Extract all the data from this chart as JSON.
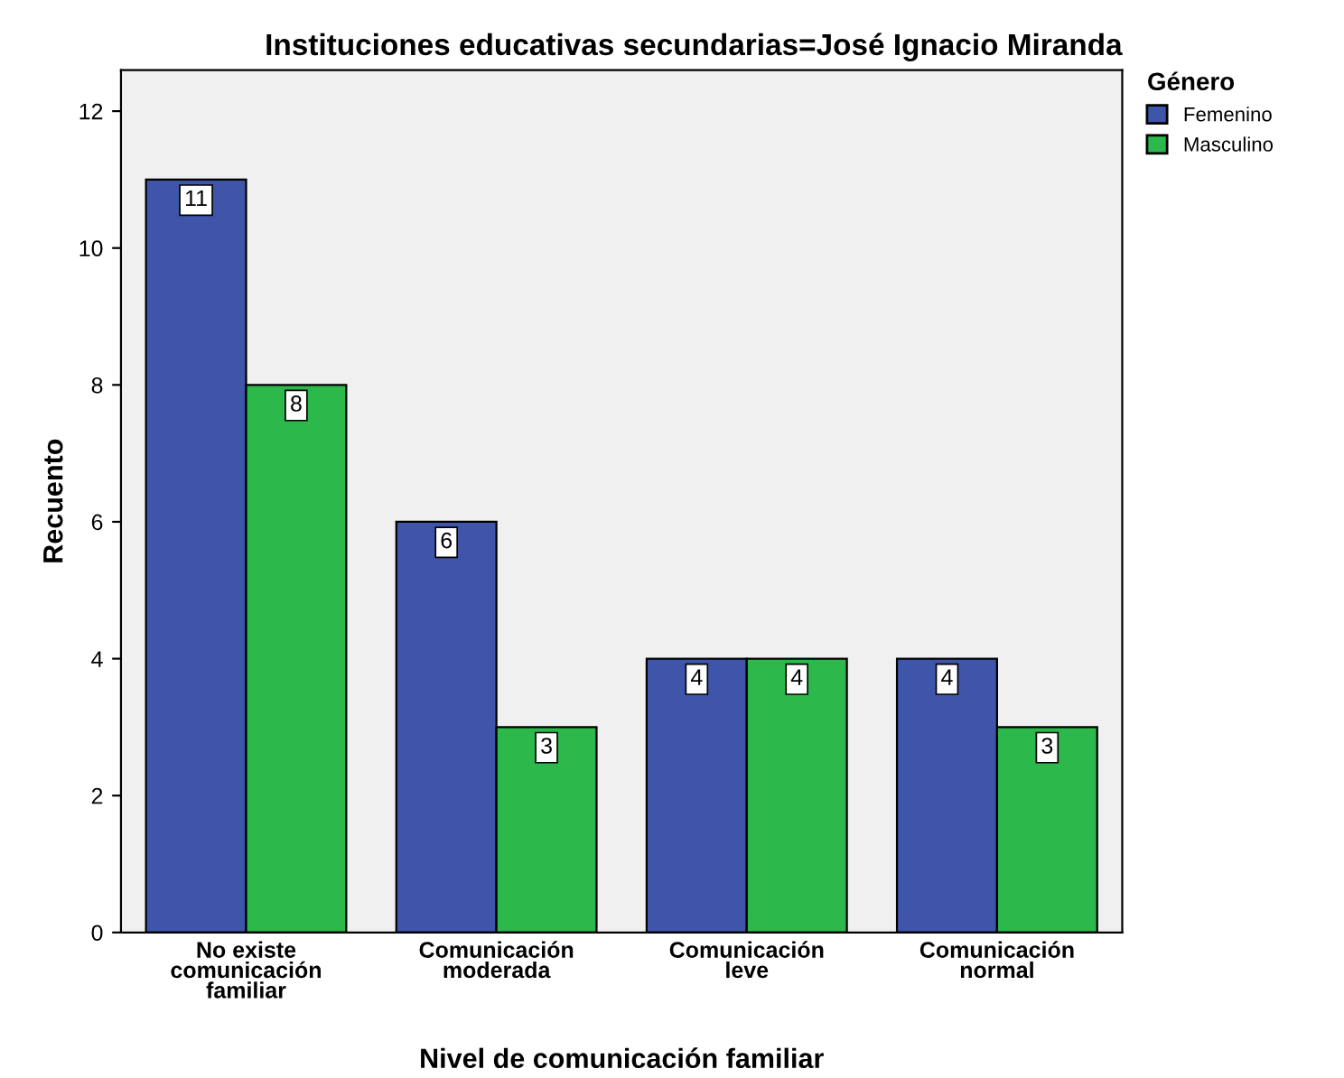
{
  "chart_data": {
    "type": "bar",
    "title": "Instituciones educativas secundarias=José Ignacio Miranda",
    "xlabel": "Nivel de comunicación familiar",
    "ylabel": "Recuento",
    "legend_title": "Género",
    "categories": [
      "No existe\ncomunicación\nfamiliar",
      "Comunicación\nmoderada",
      "Comunicación\nleve",
      "Comunicación\nnormal"
    ],
    "series": [
      {
        "name": "Femenino",
        "color": "#3e55aa",
        "values": [
          11,
          6,
          4,
          4
        ]
      },
      {
        "name": "Masculino",
        "color": "#2cb84a",
        "values": [
          8,
          3,
          4,
          3
        ]
      }
    ],
    "ylim": [
      0,
      12.6
    ],
    "yticks": [
      0,
      2,
      4,
      6,
      8,
      10,
      12
    ],
    "grid": false,
    "legend": "top right",
    "data_labels": true
  }
}
